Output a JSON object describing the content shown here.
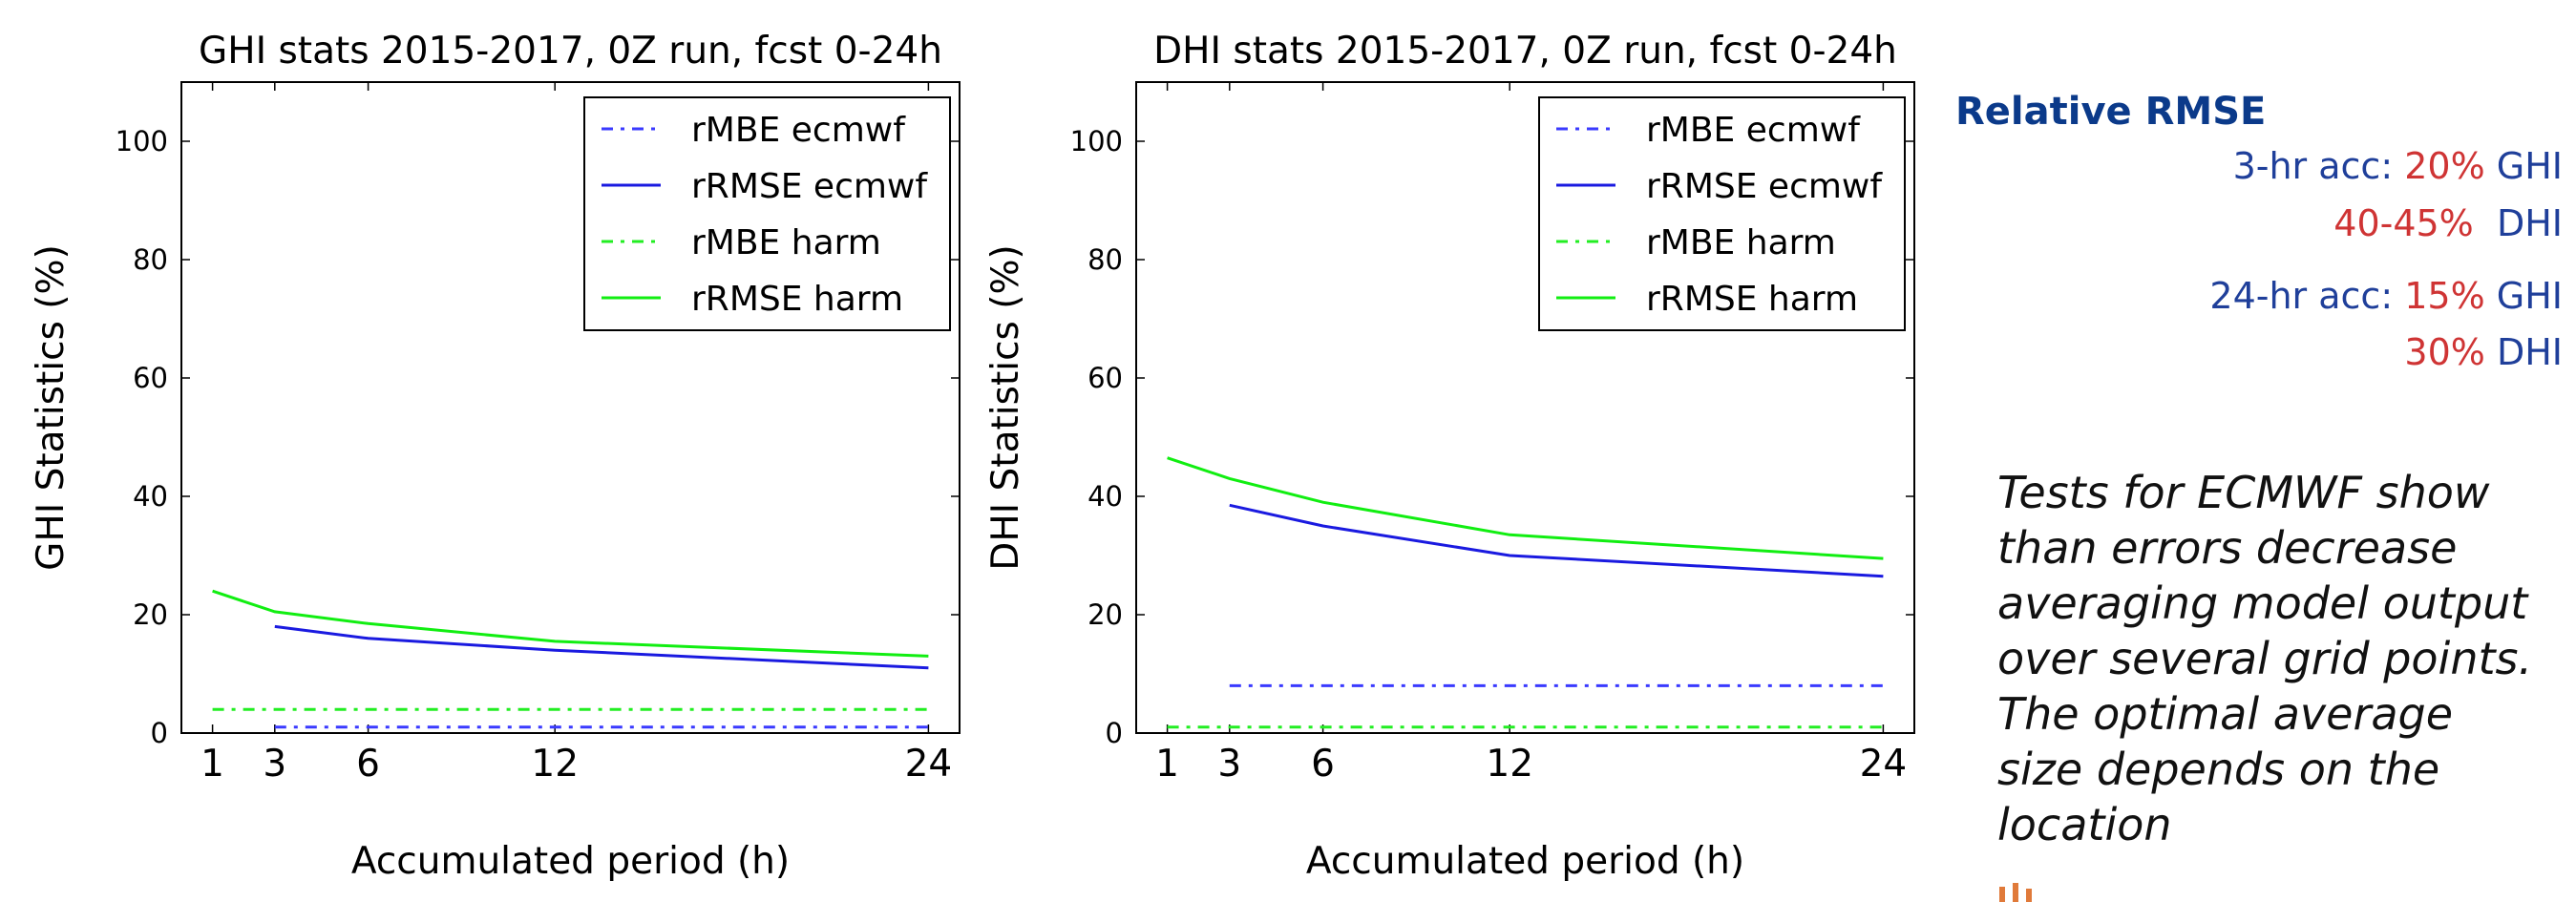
{
  "chart_data": [
    {
      "type": "line",
      "title": "GHI stats 2015-2017, 0Z run, fcst 0-24h",
      "xlabel": "Accumulated period (h)",
      "ylabel": "GHI Statistics (%)",
      "xlim": [
        0,
        25
      ],
      "ylim": [
        0,
        110
      ],
      "xticks": [
        1,
        3,
        6,
        12,
        24
      ],
      "yticks": [
        0,
        20,
        40,
        60,
        80,
        100
      ],
      "legend_position": "top-right",
      "series": [
        {
          "name": "rMBE ecmwf",
          "color": "#3a3aff",
          "style": "dashdot",
          "x": [
            3,
            6,
            12,
            24
          ],
          "y": [
            1,
            1,
            1,
            1
          ]
        },
        {
          "name": "rRMSE ecmwf",
          "color": "#1a1ae0",
          "style": "solid",
          "x": [
            3,
            6,
            12,
            24
          ],
          "y": [
            18,
            16,
            14,
            11
          ]
        },
        {
          "name": "rMBE harm",
          "color": "#22ee22",
          "style": "dashdot",
          "x": [
            1,
            3,
            6,
            12,
            24
          ],
          "y": [
            4,
            4,
            4,
            4,
            4
          ]
        },
        {
          "name": "rRMSE harm",
          "color": "#11ee11",
          "style": "solid",
          "x": [
            1,
            3,
            6,
            12,
            24
          ],
          "y": [
            24,
            20.5,
            18.5,
            15.5,
            13
          ]
        }
      ]
    },
    {
      "type": "line",
      "title": "DHI stats 2015-2017, 0Z run, fcst 0-24h",
      "xlabel": "Accumulated period (h)",
      "ylabel": "DHI Statistics (%)",
      "xlim": [
        0,
        25
      ],
      "ylim": [
        0,
        110
      ],
      "xticks": [
        1,
        3,
        6,
        12,
        24
      ],
      "yticks": [
        0,
        20,
        40,
        60,
        80,
        100
      ],
      "legend_position": "top-right",
      "series": [
        {
          "name": "rMBE ecmwf",
          "color": "#3a3aff",
          "style": "dashdot",
          "x": [
            3,
            6,
            12,
            24
          ],
          "y": [
            8,
            8,
            8,
            8
          ]
        },
        {
          "name": "rRMSE ecmwf",
          "color": "#1a1ae0",
          "style": "solid",
          "x": [
            3,
            6,
            12,
            24
          ],
          "y": [
            38.5,
            35,
            30,
            26.5
          ]
        },
        {
          "name": "rMBE harm",
          "color": "#22ee22",
          "style": "dashdot",
          "x": [
            1,
            3,
            6,
            12,
            24
          ],
          "y": [
            1,
            1,
            1,
            1,
            1
          ]
        },
        {
          "name": "rRMSE harm",
          "color": "#11ee11",
          "style": "solid",
          "x": [
            1,
            3,
            6,
            12,
            24
          ],
          "y": [
            46.5,
            43,
            39,
            33.5,
            29.5
          ]
        }
      ]
    }
  ],
  "sidebar": {
    "title": "Relative RMSE",
    "rows": [
      {
        "prefix": "3-hr acc: ",
        "value": "20%",
        "unit": " GHI"
      },
      {
        "prefix": "",
        "value": "40-45%",
        "unit": "  DHI"
      },
      {
        "prefix": "24-hr acc: ",
        "value": "15%",
        "unit": " GHI"
      },
      {
        "prefix": "",
        "value": "30%",
        "unit": " DHI"
      }
    ],
    "note_lines": [
      "Tests for ECMWF show",
      "than errors decrease",
      "averaging model output",
      "over several grid points.",
      "The optimal average",
      "size depends on the",
      "location"
    ]
  },
  "colors": {
    "accent_blue": "#1f3f9a",
    "accent_red": "#cf3434",
    "title_blue": "#0b3a8a",
    "logo": "#e07a3a"
  }
}
